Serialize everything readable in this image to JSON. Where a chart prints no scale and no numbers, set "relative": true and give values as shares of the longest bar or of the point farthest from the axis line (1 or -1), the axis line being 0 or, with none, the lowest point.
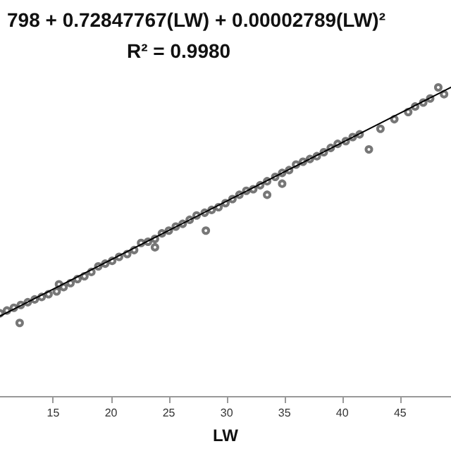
{
  "chart_data": {
    "type": "scatter",
    "title": "798 + 0.72847767(LW) + 0.00002789(LW)²",
    "subtitle": "R² = 0.9980",
    "xlabel": "LW",
    "relative": true,
    "xlim": [
      10.4,
      49.4
    ],
    "xticks": [
      15,
      20,
      25,
      30,
      35,
      40,
      45
    ],
    "grid": false,
    "series": [
      {
        "type": "scatter",
        "marker": "circle",
        "color": "#555555",
        "x": [
          10.4,
          11.0,
          11.6,
          12.1,
          12.2,
          12.8,
          13.4,
          14.0,
          14.6,
          15.3,
          15.5,
          15.9,
          16.5,
          17.1,
          17.7,
          18.3,
          18.9,
          19.5,
          20.1,
          20.7,
          21.4,
          22.0,
          22.6,
          23.2,
          23.8,
          23.8,
          24.4,
          25.0,
          25.6,
          26.2,
          26.8,
          27.4,
          28.1,
          28.2,
          28.7,
          29.3,
          29.9,
          30.5,
          31.1,
          31.7,
          32.3,
          32.9,
          33.5,
          33.5,
          34.2,
          34.8,
          34.8,
          35.4,
          36.0,
          36.6,
          37.2,
          37.8,
          38.4,
          39.0,
          39.6,
          40.3,
          40.9,
          41.5,
          42.3,
          43.3,
          44.5,
          45.7,
          46.3,
          47.0,
          47.6,
          48.3,
          48.8
        ],
        "values": [
          0.268,
          0.277,
          0.286,
          0.237,
          0.295,
          0.304,
          0.313,
          0.321,
          0.33,
          0.339,
          0.362,
          0.353,
          0.366,
          0.379,
          0.388,
          0.402,
          0.42,
          0.429,
          0.438,
          0.451,
          0.46,
          0.473,
          0.496,
          0.5,
          0.509,
          0.482,
          0.527,
          0.536,
          0.549,
          0.558,
          0.571,
          0.585,
          0.594,
          0.536,
          0.603,
          0.612,
          0.625,
          0.638,
          0.652,
          0.665,
          0.67,
          0.683,
          0.696,
          0.652,
          0.71,
          0.723,
          0.688,
          0.732,
          0.75,
          0.759,
          0.768,
          0.777,
          0.79,
          0.804,
          0.817,
          0.826,
          0.839,
          0.848,
          0.799,
          0.866,
          0.897,
          0.92,
          0.938,
          0.951,
          0.964,
          1.0,
          0.978
        ]
      },
      {
        "type": "line",
        "marker": "none",
        "line_style": "solid",
        "color": "#000000",
        "x": [
          10.4,
          49.4
        ],
        "values": [
          0.259,
          1.0
        ]
      }
    ]
  }
}
